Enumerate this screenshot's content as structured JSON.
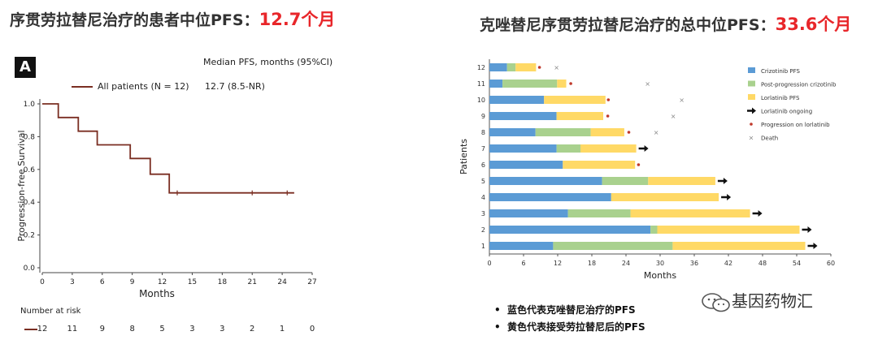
{
  "left_headline": {
    "text": "序贯劳拉替尼治疗的患者中位PFS：",
    "highlight": "12.7个月"
  },
  "right_headline": {
    "text": "克唑替尼序贯劳拉替尼治疗的总中位PFS：",
    "highlight": "33.6个月"
  },
  "panel_label": "A",
  "km_legend": {
    "entry": "All patients (N = 12)",
    "header": "Median PFS, months (95%CI)",
    "value": "12.7 (8.5-NR)"
  },
  "risk_table": {
    "title": "Number at risk",
    "counts": [
      "12",
      "11",
      "9",
      "8",
      "5",
      "3",
      "3",
      "2",
      "1",
      "0"
    ]
  },
  "bullets": [
    "蓝色代表克唑替尼治疗的PFS",
    "黄色代表接受劳拉替尼后的PFS"
  ],
  "watermark": "基因药物汇",
  "colors": {
    "km_line": "#7a2e22",
    "crizotinib": "#5b9bd5",
    "post": "#a9d18e",
    "lorlatinib": "#ffd966",
    "progression": "#c0392b",
    "death": "#888888",
    "highlight": "#e8262a"
  },
  "chart_data": [
    {
      "type": "line",
      "subtype": "kaplan-meier",
      "xlabel": "Months",
      "ylabel": "Progression-free Survival",
      "xlim": [
        0,
        27
      ],
      "ylim": [
        0,
        1.0
      ],
      "xticks": [
        0,
        3,
        6,
        9,
        12,
        15,
        18,
        21,
        24,
        27
      ],
      "yticks": [
        "0.0",
        "0.2",
        "0.4",
        "0.6",
        "0.8",
        "1.0"
      ],
      "series": [
        {
          "name": "All patients (N = 12)",
          "steps": [
            [
              0,
              1.0
            ],
            [
              1.6,
              1.0
            ],
            [
              1.6,
              0.917
            ],
            [
              3.6,
              0.917
            ],
            [
              3.6,
              0.833
            ],
            [
              5.5,
              0.833
            ],
            [
              5.5,
              0.75
            ],
            [
              8.8,
              0.75
            ],
            [
              8.8,
              0.667
            ],
            [
              10.8,
              0.667
            ],
            [
              10.8,
              0.571
            ],
            [
              12.7,
              0.571
            ],
            [
              12.7,
              0.457
            ],
            [
              25.2,
              0.457
            ]
          ],
          "censored": [
            [
              13.5,
              0.457
            ],
            [
              21.0,
              0.457
            ],
            [
              24.5,
              0.457
            ]
          ]
        }
      ]
    },
    {
      "type": "bar",
      "subtype": "swimmer",
      "orientation": "horizontal",
      "stacked": true,
      "xlabel": "Months",
      "ylabel": "Patients",
      "xlim": [
        0,
        60
      ],
      "xticks": [
        0,
        6,
        12,
        18,
        24,
        30,
        36,
        42,
        48,
        54,
        60
      ],
      "categories": [
        "12",
        "11",
        "10",
        "9",
        "8",
        "7",
        "6",
        "5",
        "4",
        "3",
        "2",
        "1"
      ],
      "series": [
        {
          "name": "Crizotinib PFS",
          "values": [
            3.1,
            2.3,
            9.6,
            11.8,
            8.1,
            11.8,
            12.9,
            19.8,
            21.4,
            13.8,
            28.3,
            11.2
          ]
        },
        {
          "name": "Post-progression crizotinib",
          "values": [
            1.5,
            9.6,
            0,
            0,
            9.7,
            4.2,
            0,
            8.1,
            0,
            11.0,
            1.2,
            21.0
          ]
        },
        {
          "name": "Lorlatinib PFS",
          "values": [
            3.6,
            1.6,
            10.8,
            8.2,
            5.9,
            9.8,
            12.7,
            11.8,
            18.9,
            21.0,
            25.0,
            23.3
          ]
        }
      ],
      "lorlatinib_ongoing": [
        "7",
        "5",
        "4",
        "3",
        "2",
        "1"
      ],
      "progression_on_lorlatinib": [
        [
          8.8,
          "12"
        ],
        [
          14.3,
          "11"
        ],
        [
          20.9,
          "10"
        ],
        [
          20.8,
          "9"
        ],
        [
          24.5,
          "8"
        ],
        [
          26.2,
          "6"
        ]
      ],
      "death": [
        [
          11.8,
          "12"
        ],
        [
          27.8,
          "11"
        ],
        [
          33.8,
          "10"
        ],
        [
          32.3,
          "9"
        ],
        [
          29.3,
          "8"
        ]
      ],
      "legend": [
        "Crizotinib PFS",
        "Post-progression crizotinib",
        "Lorlatinib PFS",
        "Lorlatinib ongoing",
        "Progression on lorlatinib",
        "Death"
      ],
      "legend_position": "top-right"
    }
  ]
}
